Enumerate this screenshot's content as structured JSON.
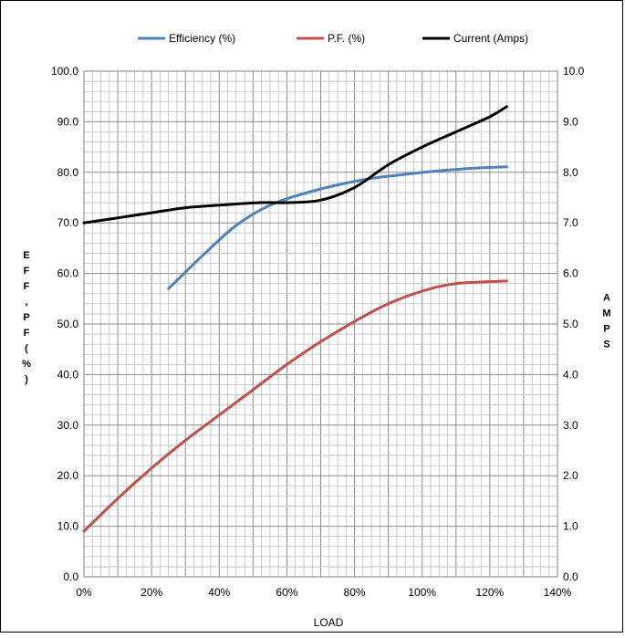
{
  "chart_data": {
    "type": "line",
    "xlabel": "LOAD",
    "ylabel": "EFF, PF (%)",
    "y2label": "AMPS",
    "xlim": [
      0,
      140
    ],
    "ylim": [
      0,
      100
    ],
    "y2lim": [
      0,
      10
    ],
    "x_ticks": [
      "0%",
      "20%",
      "40%",
      "60%",
      "80%",
      "100%",
      "120%",
      "140%"
    ],
    "y_ticks": [
      "0.0",
      "10.0",
      "20.0",
      "30.0",
      "40.0",
      "50.0",
      "60.0",
      "70.0",
      "80.0",
      "90.0",
      "100.0"
    ],
    "y2_ticks": [
      "0.0",
      "1.0",
      "2.0",
      "3.0",
      "4.0",
      "5.0",
      "6.0",
      "7.0",
      "8.0",
      "9.0",
      "10.0"
    ],
    "grid": true,
    "legend_position": "top",
    "series": [
      {
        "name": "Efficiency (%)",
        "axis": "left",
        "color": "#4F81BD",
        "points": [
          [
            25,
            57
          ],
          [
            35,
            63.5
          ],
          [
            45,
            69.5
          ],
          [
            55,
            73.5
          ],
          [
            65,
            75.8
          ],
          [
            75,
            77.5
          ],
          [
            85,
            78.8
          ],
          [
            95,
            79.6
          ],
          [
            105,
            80.3
          ],
          [
            115,
            80.8
          ],
          [
            125,
            81.1
          ]
        ]
      },
      {
        "name": "P.F. (%)",
        "axis": "left",
        "color": "#C0504D",
        "points": [
          [
            0,
            9
          ],
          [
            10,
            15.5
          ],
          [
            20,
            21.5
          ],
          [
            30,
            27
          ],
          [
            40,
            32
          ],
          [
            50,
            37
          ],
          [
            60,
            42
          ],
          [
            70,
            46.5
          ],
          [
            80,
            50.5
          ],
          [
            90,
            54
          ],
          [
            100,
            56.5
          ],
          [
            110,
            58.0
          ],
          [
            125,
            58.5
          ]
        ]
      },
      {
        "name": "Current (Amps)",
        "axis": "right",
        "color": "#000000",
        "points": [
          [
            0,
            7.0
          ],
          [
            10,
            7.1
          ],
          [
            20,
            7.2
          ],
          [
            30,
            7.3
          ],
          [
            40,
            7.35
          ],
          [
            52,
            7.4
          ],
          [
            60,
            7.4
          ],
          [
            70,
            7.45
          ],
          [
            80,
            7.7
          ],
          [
            90,
            8.15
          ],
          [
            100,
            8.5
          ],
          [
            110,
            8.8
          ],
          [
            120,
            9.1
          ],
          [
            125,
            9.3
          ]
        ]
      }
    ]
  }
}
